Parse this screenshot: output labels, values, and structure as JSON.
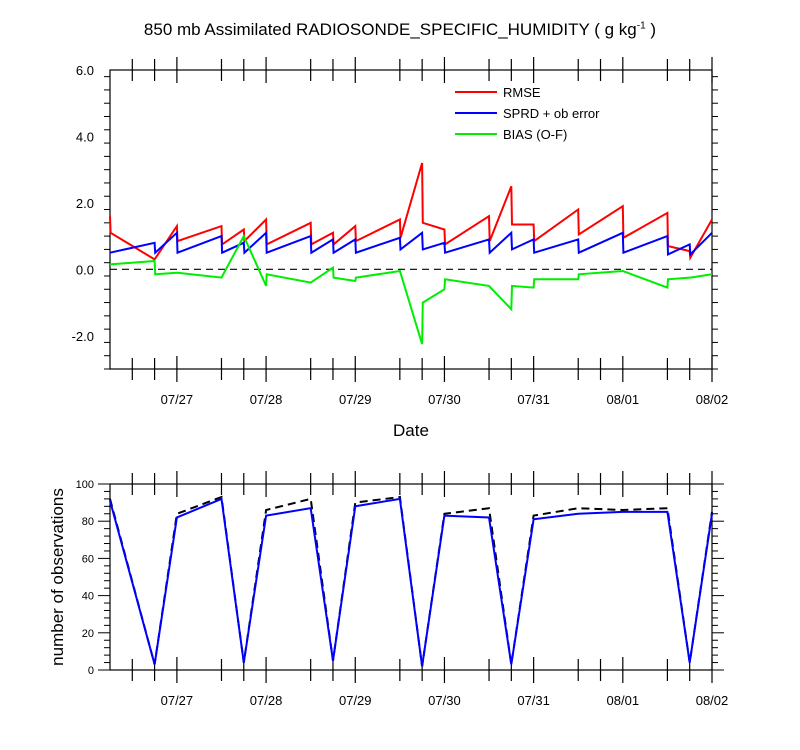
{
  "chart_data": [
    {
      "type": "line",
      "title": "850 mb Assimilated RADIOSONDE_SPECIFIC_HUMIDITY",
      "title_units_prefix": "( g kg",
      "title_units_exp": "-1",
      "title_units_suffix": " )",
      "xlabel": "Date",
      "ylabel": "",
      "xlim": [
        "07/26 06:00",
        "08/02 00:00"
      ],
      "ylim": [
        -3.0,
        6.0
      ],
      "yticks": [
        -2.0,
        0.0,
        2.0,
        4.0,
        6.0
      ],
      "ytick_labels": [
        "-2.0",
        "0.0",
        "2.0",
        "4.0",
        "6.0"
      ],
      "xtick_labels": [
        "07/27",
        "07/28",
        "07/29",
        "07/30",
        "07/31",
        "08/01",
        "08/02"
      ],
      "zero_line": "dashed black",
      "legend_position": "top-right",
      "series": [
        {
          "name": "RMSE",
          "color": "#ff0000",
          "points": [
            [
              "07/26 06:00",
              1.6
            ],
            [
              "07/26 06:10",
              1.1
            ],
            [
              "07/26 18:00",
              0.3
            ],
            [
              "07/27 00:00",
              1.3
            ],
            [
              "07/27 00:10",
              0.85
            ],
            [
              "07/27 12:00",
              1.3
            ],
            [
              "07/27 12:10",
              0.75
            ],
            [
              "07/27 18:00",
              1.2
            ],
            [
              "07/27 18:10",
              0.85
            ],
            [
              "07/28 00:00",
              1.5
            ],
            [
              "07/28 00:10",
              0.75
            ],
            [
              "07/28 12:00",
              1.4
            ],
            [
              "07/28 12:10",
              0.75
            ],
            [
              "07/28 18:00",
              1.1
            ],
            [
              "07/28 18:10",
              0.75
            ],
            [
              "07/29 00:00",
              1.3
            ],
            [
              "07/29 00:10",
              0.85
            ],
            [
              "07/29 12:00",
              1.5
            ],
            [
              "07/29 12:10",
              0.95
            ],
            [
              "07/29 18:00",
              3.2
            ],
            [
              "07/29 18:10",
              1.4
            ],
            [
              "07/30 00:00",
              1.2
            ],
            [
              "07/30 00:10",
              0.75
            ],
            [
              "07/30 12:00",
              1.6
            ],
            [
              "07/30 12:10",
              0.85
            ],
            [
              "07/30 18:00",
              2.5
            ],
            [
              "07/30 18:10",
              1.35
            ],
            [
              "07/31 00:00",
              1.35
            ],
            [
              "07/31 00:10",
              0.85
            ],
            [
              "07/31 12:00",
              1.8
            ],
            [
              "07/31 12:10",
              1.05
            ],
            [
              "08/01 00:00",
              1.9
            ],
            [
              "08/01 00:10",
              0.95
            ],
            [
              "08/01 12:00",
              1.7
            ],
            [
              "08/01 12:10",
              0.7
            ],
            [
              "08/01 18:00",
              0.55
            ],
            [
              "08/01 18:10",
              0.35
            ],
            [
              "08/02 00:00",
              1.5
            ]
          ]
        },
        {
          "name": "SPRD + ob error",
          "color": "#0000ff",
          "points": [
            [
              "07/26 06:00",
              0.5
            ],
            [
              "07/26 18:00",
              0.8
            ],
            [
              "07/26 18:10",
              0.5
            ],
            [
              "07/27 00:00",
              1.1
            ],
            [
              "07/27 00:10",
              0.5
            ],
            [
              "07/27 12:00",
              1.0
            ],
            [
              "07/27 12:10",
              0.5
            ],
            [
              "07/27 18:00",
              0.8
            ],
            [
              "07/27 18:10",
              0.5
            ],
            [
              "07/28 00:00",
              1.1
            ],
            [
              "07/28 00:10",
              0.5
            ],
            [
              "07/28 12:00",
              1.0
            ],
            [
              "07/28 12:10",
              0.5
            ],
            [
              "07/28 18:00",
              0.9
            ],
            [
              "07/28 18:10",
              0.5
            ],
            [
              "07/29 00:00",
              0.9
            ],
            [
              "07/29 00:10",
              0.5
            ],
            [
              "07/29 12:00",
              0.95
            ],
            [
              "07/29 12:10",
              0.6
            ],
            [
              "07/29 18:00",
              1.1
            ],
            [
              "07/29 18:10",
              0.6
            ],
            [
              "07/30 00:00",
              0.8
            ],
            [
              "07/30 00:10",
              0.5
            ],
            [
              "07/30 12:00",
              0.9
            ],
            [
              "07/30 12:10",
              0.5
            ],
            [
              "07/30 18:00",
              1.1
            ],
            [
              "07/30 18:10",
              0.6
            ],
            [
              "07/31 00:00",
              0.9
            ],
            [
              "07/31 00:10",
              0.5
            ],
            [
              "07/31 12:00",
              0.9
            ],
            [
              "07/31 12:10",
              0.5
            ],
            [
              "08/01 00:00",
              1.1
            ],
            [
              "08/01 00:10",
              0.5
            ],
            [
              "08/01 12:00",
              1.0
            ],
            [
              "08/01 12:10",
              0.45
            ],
            [
              "08/01 18:00",
              0.75
            ],
            [
              "08/01 18:10",
              0.45
            ],
            [
              "08/02 00:00",
              1.1
            ]
          ]
        },
        {
          "name": "BIAS (O-F)",
          "color": "#00ee00",
          "points": [
            [
              "07/26 06:00",
              0.15
            ],
            [
              "07/26 18:00",
              0.25
            ],
            [
              "07/26 18:10",
              -0.15
            ],
            [
              "07/27 00:00",
              -0.1
            ],
            [
              "07/27 00:10",
              -0.1
            ],
            [
              "07/27 12:00",
              -0.25
            ],
            [
              "07/27 18:00",
              1.0
            ],
            [
              "07/28 00:00",
              -0.5
            ],
            [
              "07/28 00:10",
              -0.15
            ],
            [
              "07/28 12:00",
              -0.4
            ],
            [
              "07/28 18:00",
              0.05
            ],
            [
              "07/28 18:10",
              -0.25
            ],
            [
              "07/29 00:00",
              -0.35
            ],
            [
              "07/29 00:10",
              -0.25
            ],
            [
              "07/29 12:00",
              -0.05
            ],
            [
              "07/29 18:00",
              -2.25
            ],
            [
              "07/29 18:10",
              -1.0
            ],
            [
              "07/30 00:00",
              -0.6
            ],
            [
              "07/30 00:10",
              -0.3
            ],
            [
              "07/30 12:00",
              -0.5
            ],
            [
              "07/30 18:00",
              -1.2
            ],
            [
              "07/30 18:10",
              -0.5
            ],
            [
              "07/31 00:00",
              -0.55
            ],
            [
              "07/31 00:10",
              -0.3
            ],
            [
              "07/31 12:00",
              -0.3
            ],
            [
              "07/31 12:10",
              -0.15
            ],
            [
              "08/01 00:00",
              -0.05
            ],
            [
              "08/01 12:00",
              -0.55
            ],
            [
              "08/01 12:10",
              -0.3
            ],
            [
              "08/01 18:00",
              -0.25
            ],
            [
              "08/01 18:10",
              -0.25
            ],
            [
              "08/02 00:00",
              -0.15
            ]
          ]
        }
      ]
    },
    {
      "type": "line",
      "title": "",
      "xlabel": "",
      "ylabel": "number of observations",
      "xlim": [
        "07/26 06:00",
        "08/02 00:00"
      ],
      "ylim": [
        0,
        100
      ],
      "yticks": [
        0,
        20,
        40,
        60,
        80,
        100
      ],
      "ytick_labels": [
        "0",
        "20",
        "40",
        "60",
        "80",
        "100"
      ],
      "xtick_labels": [
        "07/27",
        "07/28",
        "07/29",
        "07/30",
        "07/31",
        "08/01",
        "08/02"
      ],
      "series": [
        {
          "role": "possible observations",
          "color": "#000000",
          "dash": "dashed",
          "points": [
            [
              "07/26 06:00",
              92
            ],
            [
              "07/26 18:00",
              3
            ],
            [
              "07/27 00:00",
              84
            ],
            [
              "07/27 12:00",
              93
            ],
            [
              "07/27 18:00",
              4
            ],
            [
              "07/28 00:00",
              86
            ],
            [
              "07/28 12:00",
              92
            ],
            [
              "07/28 18:00",
              5
            ],
            [
              "07/29 00:00",
              90
            ],
            [
              "07/29 12:00",
              93
            ],
            [
              "07/29 18:00",
              2
            ],
            [
              "07/30 00:00",
              84
            ],
            [
              "07/30 12:00",
              87
            ],
            [
              "07/30 18:00",
              3
            ],
            [
              "07/31 00:00",
              83
            ],
            [
              "07/31 12:00",
              87
            ],
            [
              "08/01 00:00",
              86
            ],
            [
              "08/01 12:00",
              87
            ],
            [
              "08/01 18:00",
              4
            ],
            [
              "08/02 00:00",
              85
            ]
          ]
        },
        {
          "role": "assimilated observations",
          "color": "#0000ff",
          "dash": "solid",
          "points": [
            [
              "07/26 06:00",
              91
            ],
            [
              "07/26 18:00",
              3
            ],
            [
              "07/27 00:00",
              82
            ],
            [
              "07/27 12:00",
              92
            ],
            [
              "07/27 18:00",
              4
            ],
            [
              "07/28 00:00",
              83
            ],
            [
              "07/28 12:00",
              87
            ],
            [
              "07/28 18:00",
              5
            ],
            [
              "07/29 00:00",
              88
            ],
            [
              "07/29 12:00",
              92
            ],
            [
              "07/29 18:00",
              2
            ],
            [
              "07/30 00:00",
              83
            ],
            [
              "07/30 12:00",
              82
            ],
            [
              "07/30 18:00",
              3
            ],
            [
              "07/31 00:00",
              81
            ],
            [
              "07/31 12:00",
              84
            ],
            [
              "08/01 00:00",
              85
            ],
            [
              "08/01 12:00",
              85
            ],
            [
              "08/01 18:00",
              4
            ],
            [
              "08/02 00:00",
              84
            ]
          ]
        }
      ]
    }
  ]
}
